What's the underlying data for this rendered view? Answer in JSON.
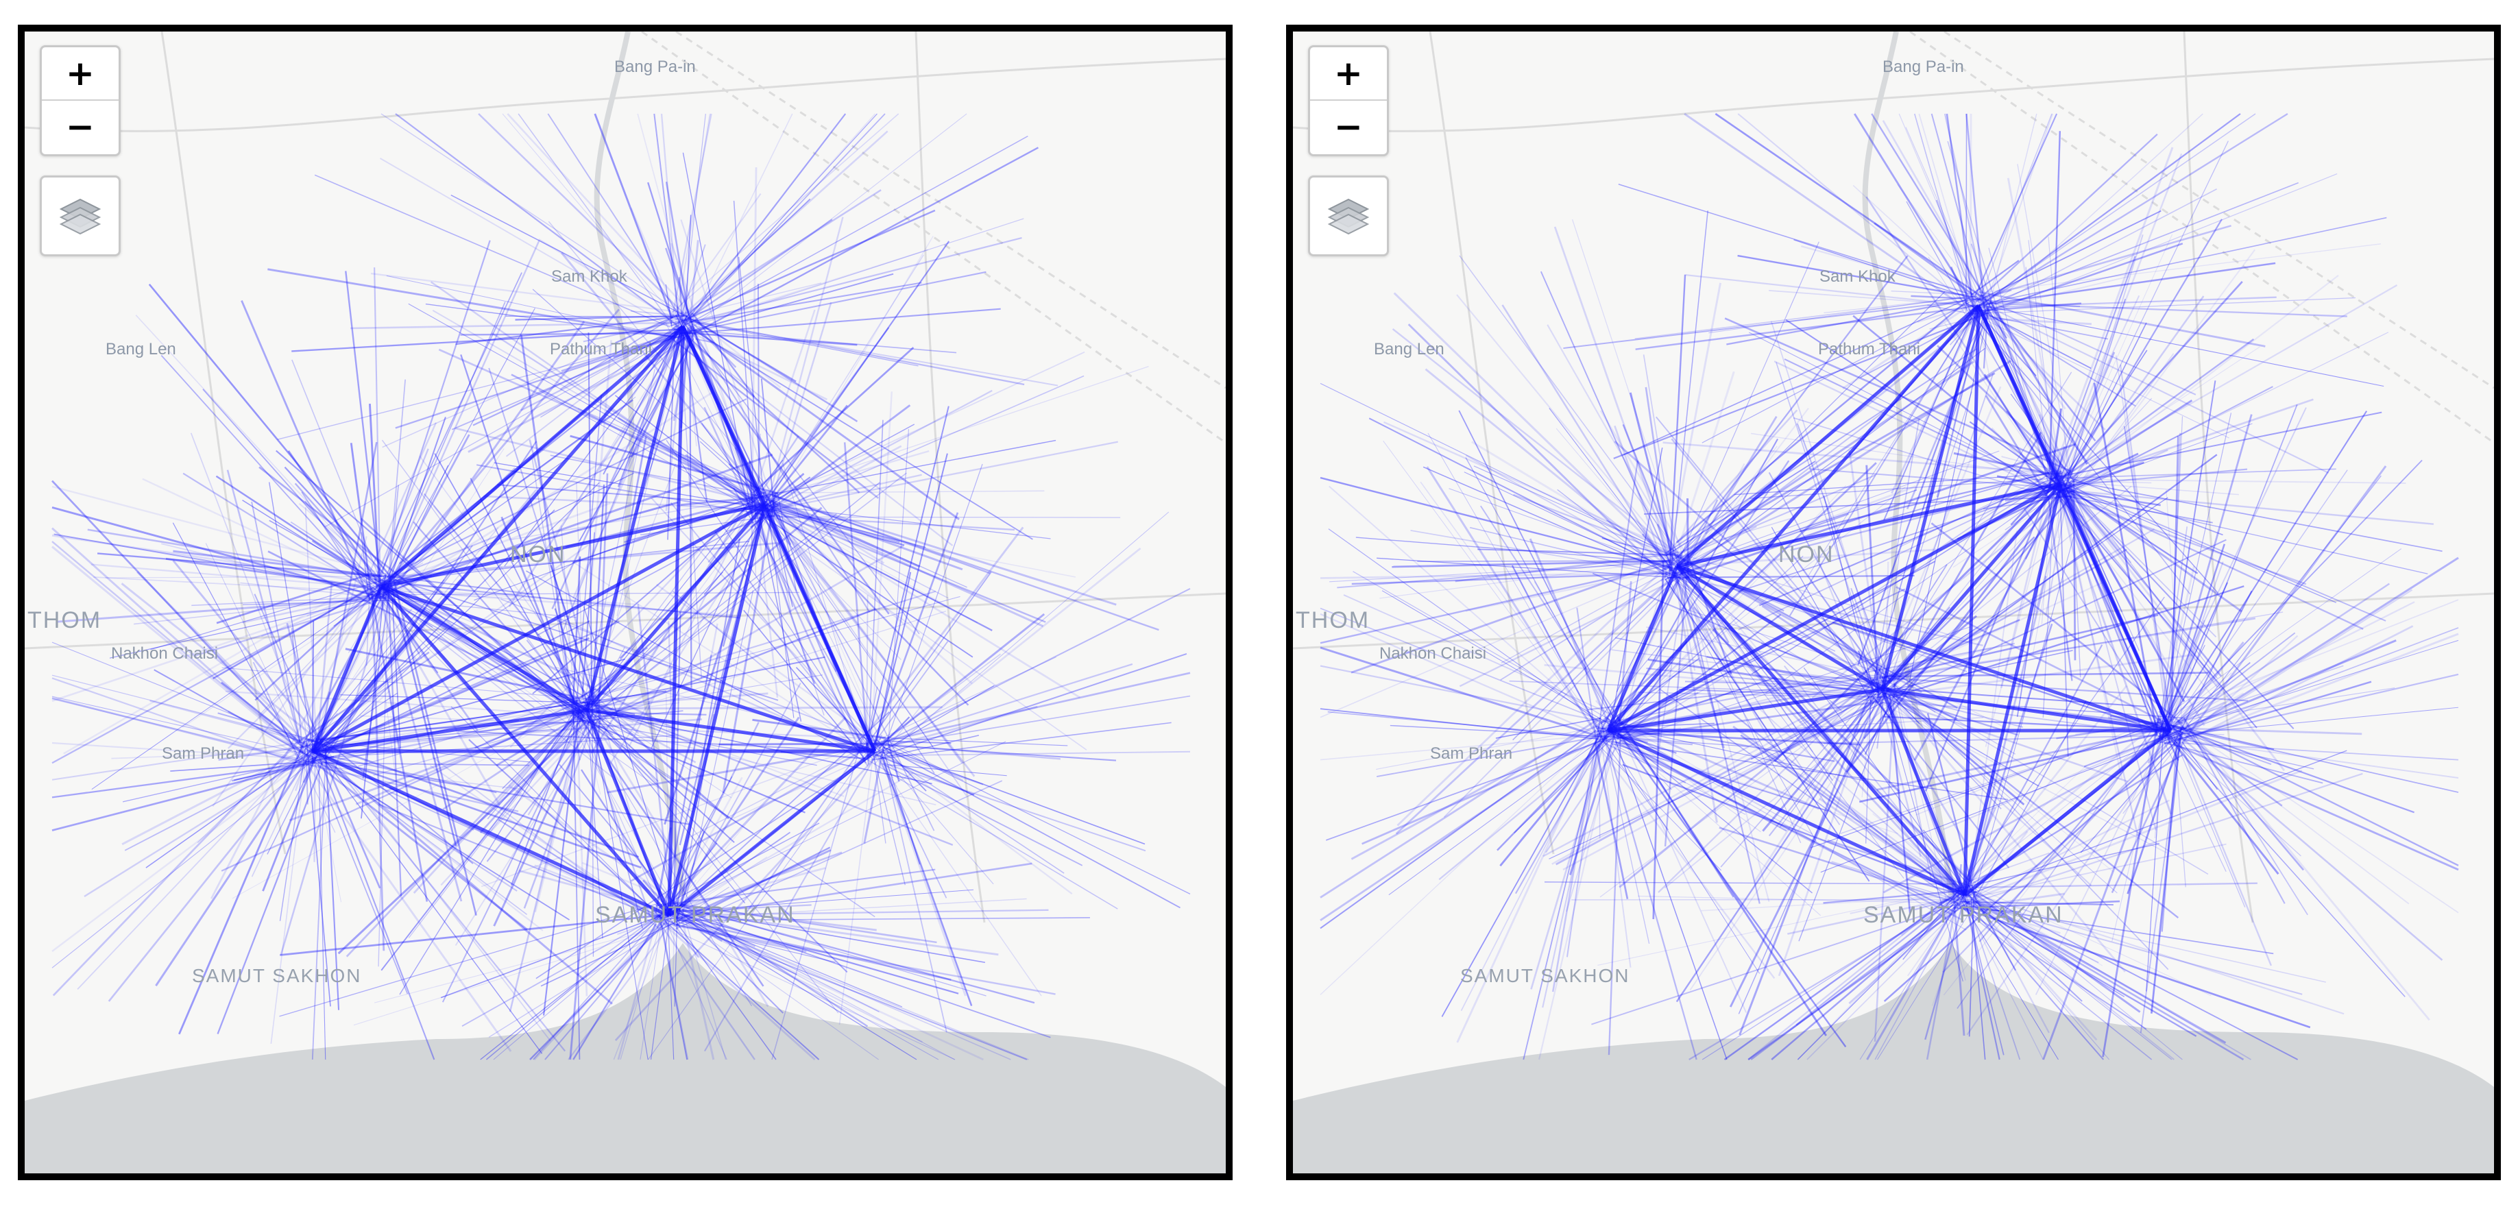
{
  "controls": {
    "zoom_in": "+",
    "zoom_out": "−",
    "layers_icon": "layers-icon"
  },
  "colors": {
    "flow_lines": "#1414ff",
    "land": "#f7f7f6",
    "water": "#d3d6d8",
    "border": "#000000"
  },
  "panels": [
    {
      "id": "left",
      "places": {
        "bang_pa_in": "Bang Pa-in",
        "sam_khok": "Sam Khok",
        "pathum_thani": "Pathum Thani",
        "bang_len": "Bang Len",
        "nonthaburi": "NON",
        "nakhon_pathom": "THOM",
        "nakhon_chaisi": "Nakhon Chaisi",
        "sam_phran": "Sam Phran",
        "samut_prakan": "SAMUT PRAKAN",
        "samut_sakhon": "SAMUT SAKHON"
      }
    },
    {
      "id": "right",
      "places": {
        "bang_pa_in": "Bang Pa-in",
        "sam_khok": "Sam Khok",
        "pathum_thani": "Pathum Thani",
        "bang_len": "Bang Len",
        "nonthaburi": "NON",
        "nakhon_pathom": "THOM",
        "nakhon_chaisi": "Nakhon Chaisi",
        "sam_phran": "Sam Phran",
        "samut_prakan": "SAMUT PRAKAN",
        "samut_sakhon": "SAMUT SAKHON"
      }
    }
  ]
}
